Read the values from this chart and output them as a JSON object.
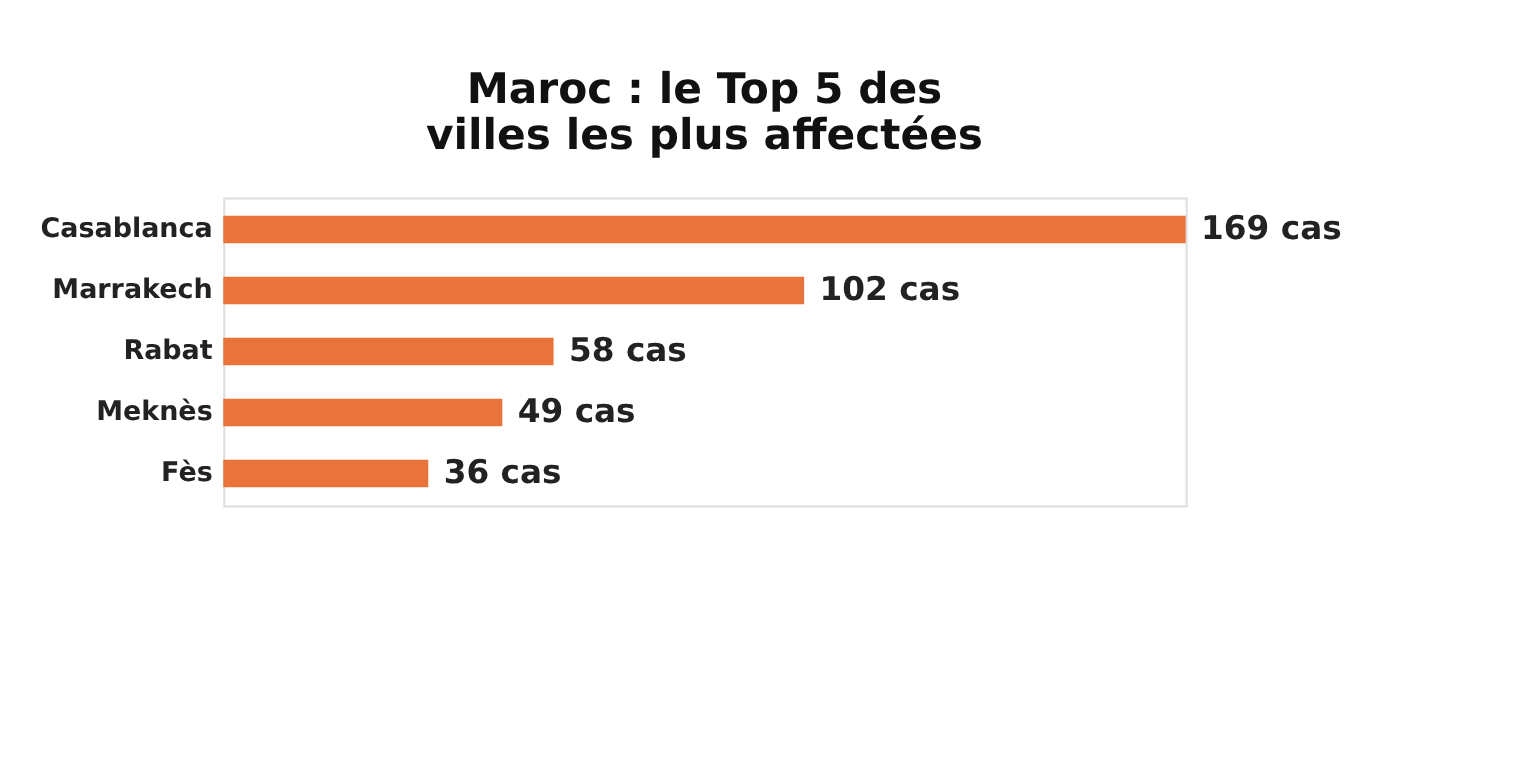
{
  "chart_data": {
    "type": "bar",
    "orientation": "horizontal",
    "title": [
      "Maroc : le Top 5 des",
      "villes les plus affectées"
    ],
    "categories": [
      "Casablanca",
      "Marrakech",
      "Rabat",
      "Meknès",
      "Fès"
    ],
    "values": [
      169,
      102,
      58,
      49,
      36
    ],
    "value_labels": [
      "169 cas",
      "102 cas",
      "58 cas",
      "49 cas",
      "36 cas"
    ],
    "color": "#e8743b",
    "grid": false,
    "tick_labels": "y"
  }
}
